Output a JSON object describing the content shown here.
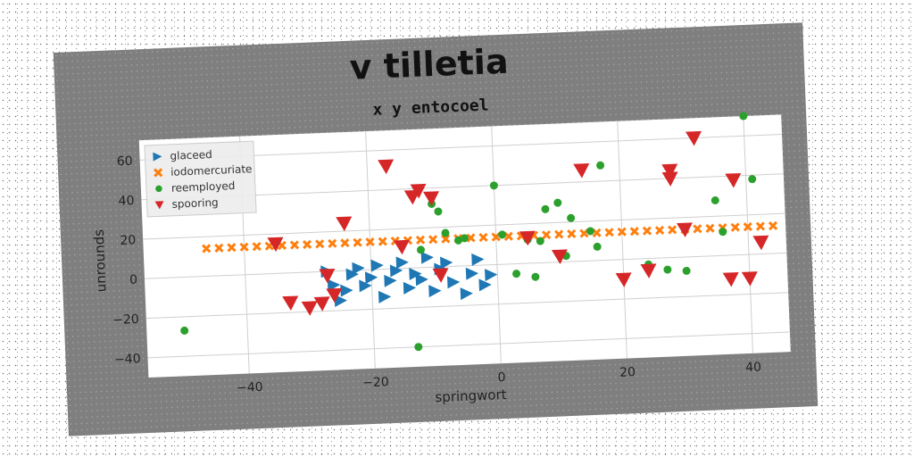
{
  "chart_data": {
    "type": "scatter",
    "title": "v tilletia",
    "subtitle": "x y entocoel",
    "xlabel": "springwort",
    "ylabel": "unrounds",
    "xlim": [
      -56,
      46
    ],
    "ylim": [
      -50,
      70
    ],
    "xticks": [
      -40,
      -20,
      0,
      20,
      40
    ],
    "yticks": [
      -40,
      -20,
      0,
      20,
      40,
      60
    ],
    "grid": true,
    "legend": "top-left",
    "series": [
      {
        "name": "glaceed",
        "marker": "triangle-right",
        "color": "#1f77b4",
        "points": [
          [
            -27,
            0
          ],
          [
            -26,
            -7
          ],
          [
            -25,
            -15
          ],
          [
            -24,
            -10
          ],
          [
            -23,
            -2
          ],
          [
            -22,
            1
          ],
          [
            -21,
            -8
          ],
          [
            -20,
            -4
          ],
          [
            -19,
            2
          ],
          [
            -18,
            -14
          ],
          [
            -17,
            -6
          ],
          [
            -16,
            -1
          ],
          [
            -15,
            3
          ],
          [
            -14,
            -10
          ],
          [
            -13,
            -3
          ],
          [
            -12,
            -6
          ],
          [
            -11,
            5
          ],
          [
            -10,
            -12
          ],
          [
            -9,
            -1
          ],
          [
            -8,
            2
          ],
          [
            -7,
            -8
          ],
          [
            -5,
            -14
          ],
          [
            -4,
            -4
          ],
          [
            -3,
            3
          ],
          [
            -2,
            -10
          ],
          [
            -1,
            -5
          ]
        ]
      },
      {
        "name": "iodomercuriate",
        "marker": "x",
        "color": "#ff7f0e",
        "points": [
          [
            -46,
            14
          ],
          [
            -44,
            14
          ],
          [
            -42,
            14
          ],
          [
            -40,
            14
          ],
          [
            -38,
            14
          ],
          [
            -36,
            14
          ],
          [
            -34,
            14
          ],
          [
            -32,
            14
          ],
          [
            -30,
            14
          ],
          [
            -28,
            14
          ],
          [
            -26,
            14
          ],
          [
            -24,
            14
          ],
          [
            -22,
            14
          ],
          [
            -20,
            14
          ],
          [
            -18,
            14
          ],
          [
            -16,
            14
          ],
          [
            -14,
            14
          ],
          [
            -12,
            14
          ],
          [
            -10,
            14
          ],
          [
            -8,
            14
          ],
          [
            -6,
            14
          ],
          [
            -4,
            14
          ],
          [
            -2,
            14
          ],
          [
            0,
            14
          ],
          [
            2,
            14
          ],
          [
            4,
            14
          ],
          [
            6,
            14
          ],
          [
            8,
            14
          ],
          [
            10,
            14
          ],
          [
            12,
            14
          ],
          [
            14,
            14
          ],
          [
            16,
            14
          ],
          [
            18,
            14
          ],
          [
            20,
            14
          ],
          [
            22,
            14
          ],
          [
            24,
            14
          ],
          [
            26,
            14
          ],
          [
            28,
            14
          ],
          [
            30,
            14
          ],
          [
            32,
            14
          ],
          [
            34,
            14
          ],
          [
            36,
            14
          ],
          [
            38,
            14
          ],
          [
            40,
            14
          ],
          [
            42,
            14
          ],
          [
            44,
            14
          ]
        ]
      },
      {
        "name": "reemployed",
        "marker": "circle",
        "color": "#2ca02c",
        "points": [
          [
            -50,
            -27
          ],
          [
            -13,
            -40
          ],
          [
            -12,
            9
          ],
          [
            -10,
            32
          ],
          [
            -9,
            28
          ],
          [
            -8,
            17
          ],
          [
            -6,
            13
          ],
          [
            -5,
            14
          ],
          [
            0,
            40
          ],
          [
            1,
            15
          ],
          [
            3,
            -5
          ],
          [
            5,
            12
          ],
          [
            6,
            -7
          ],
          [
            7,
            11
          ],
          [
            8,
            27
          ],
          [
            10,
            30
          ],
          [
            11,
            3
          ],
          [
            12,
            22
          ],
          [
            15,
            15
          ],
          [
            16,
            7
          ],
          [
            17,
            48
          ],
          [
            24,
            -3
          ],
          [
            27,
            -6
          ],
          [
            30,
            -7
          ],
          [
            35,
            28
          ],
          [
            36,
            12
          ],
          [
            40,
            70
          ],
          [
            41,
            38
          ]
        ]
      },
      {
        "name": "spooring",
        "marker": "triangle-down",
        "color": "#d62728",
        "points": [
          [
            -35,
            15
          ],
          [
            -33,
            -15
          ],
          [
            -30,
            -18
          ],
          [
            -28,
            -16
          ],
          [
            -27,
            -2
          ],
          [
            -26,
            -12
          ],
          [
            -24,
            24
          ],
          [
            -17,
            52
          ],
          [
            -15,
            11
          ],
          [
            -13,
            36
          ],
          [
            -12,
            39
          ],
          [
            -10,
            35
          ],
          [
            -9,
            -4
          ],
          [
            5,
            13
          ],
          [
            10,
            3
          ],
          [
            14,
            46
          ],
          [
            20,
            -10
          ],
          [
            24,
            -6
          ],
          [
            28,
            40
          ],
          [
            28,
            44
          ],
          [
            30,
            14
          ],
          [
            32,
            60
          ],
          [
            37,
            -12
          ],
          [
            38,
            38
          ],
          [
            40,
            -12
          ],
          [
            42,
            6
          ]
        ]
      }
    ]
  }
}
